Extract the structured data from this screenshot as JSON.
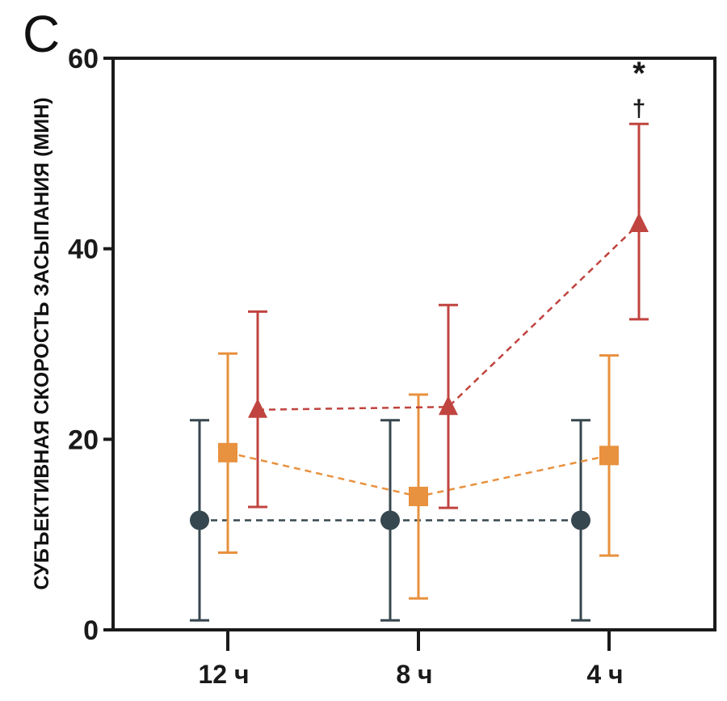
{
  "chart_data": {
    "type": "line",
    "panel_label": "C",
    "ylabel": "СУБЪЕКТИВНАЯ СКОРОСТЬ ЗАСЫПАНИЯ (МИН)",
    "xlabel": "",
    "categories": [
      "12 ч",
      "8 ч",
      "4 ч"
    ],
    "ylim": [
      0,
      60
    ],
    "yticks": [
      0,
      20,
      40,
      60
    ],
    "grid": false,
    "legend": "none",
    "series": [
      {
        "color": "#37474f",
        "marker": "circle",
        "values": [
          11.5,
          11.5,
          11.5
        ],
        "err_low": [
          1.0,
          1.0,
          1.0
        ],
        "err_high": [
          22.0,
          22.0,
          22.0
        ]
      },
      {
        "color": "#e8913e",
        "marker": "square",
        "values": [
          18.6,
          14.0,
          18.3
        ],
        "err_low": [
          8.1,
          3.3,
          7.8
        ],
        "err_high": [
          29.0,
          24.7,
          28.8
        ]
      },
      {
        "color": "#c0443f",
        "marker": "triangle",
        "values": [
          23.1,
          23.4,
          42.6
        ],
        "err_low": [
          12.9,
          12.8,
          32.6
        ],
        "err_high": [
          33.4,
          34.1,
          53.1
        ]
      }
    ],
    "annotations": [
      {
        "category": "4 ч",
        "series_index": 2,
        "text": "*"
      },
      {
        "category": "4 ч",
        "series_index": 2,
        "text": "†"
      }
    ]
  }
}
